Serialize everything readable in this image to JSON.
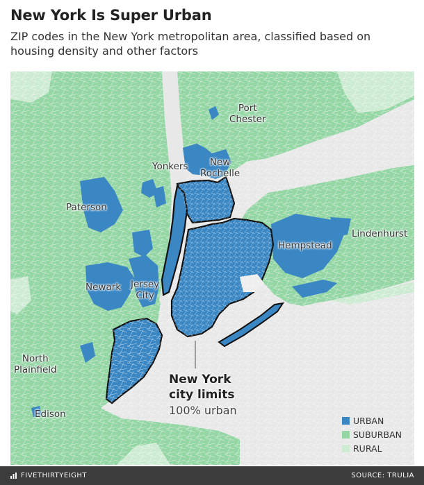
{
  "header": {
    "title": "New York Is Super Urban",
    "subtitle": "ZIP codes in the New York metropolitan area, classified based on housing density and other factors"
  },
  "map": {
    "labels": {
      "port_chester": "Port\nChester",
      "yonkers": "Yonkers",
      "new_rochelle": "New\nRochelle",
      "paterson": "Paterson",
      "hempstead": "Hempstead",
      "lindenhurst": "Lindenhurst",
      "newark": "Newark",
      "jersey_city": "Jersey\nCity",
      "north_plainfield": "North\nPlainfield",
      "edison": "Edison"
    },
    "callout": {
      "title": "New York\ncity limits",
      "value": "100% urban"
    }
  },
  "legend": {
    "items": [
      {
        "label": "URBAN",
        "color": "#3a87c4"
      },
      {
        "label": "SUBURBAN",
        "color": "#95d6a5"
      },
      {
        "label": "RURAL",
        "color": "#cdebd3"
      }
    ]
  },
  "footer": {
    "brand": "FIVETHIRTYEIGHT",
    "source": "SOURCE: TRULIA"
  },
  "colors": {
    "urban": "#3a87c4",
    "suburban": "#95d6a5",
    "rural": "#cdebd3",
    "water": "#e8e8e8"
  }
}
